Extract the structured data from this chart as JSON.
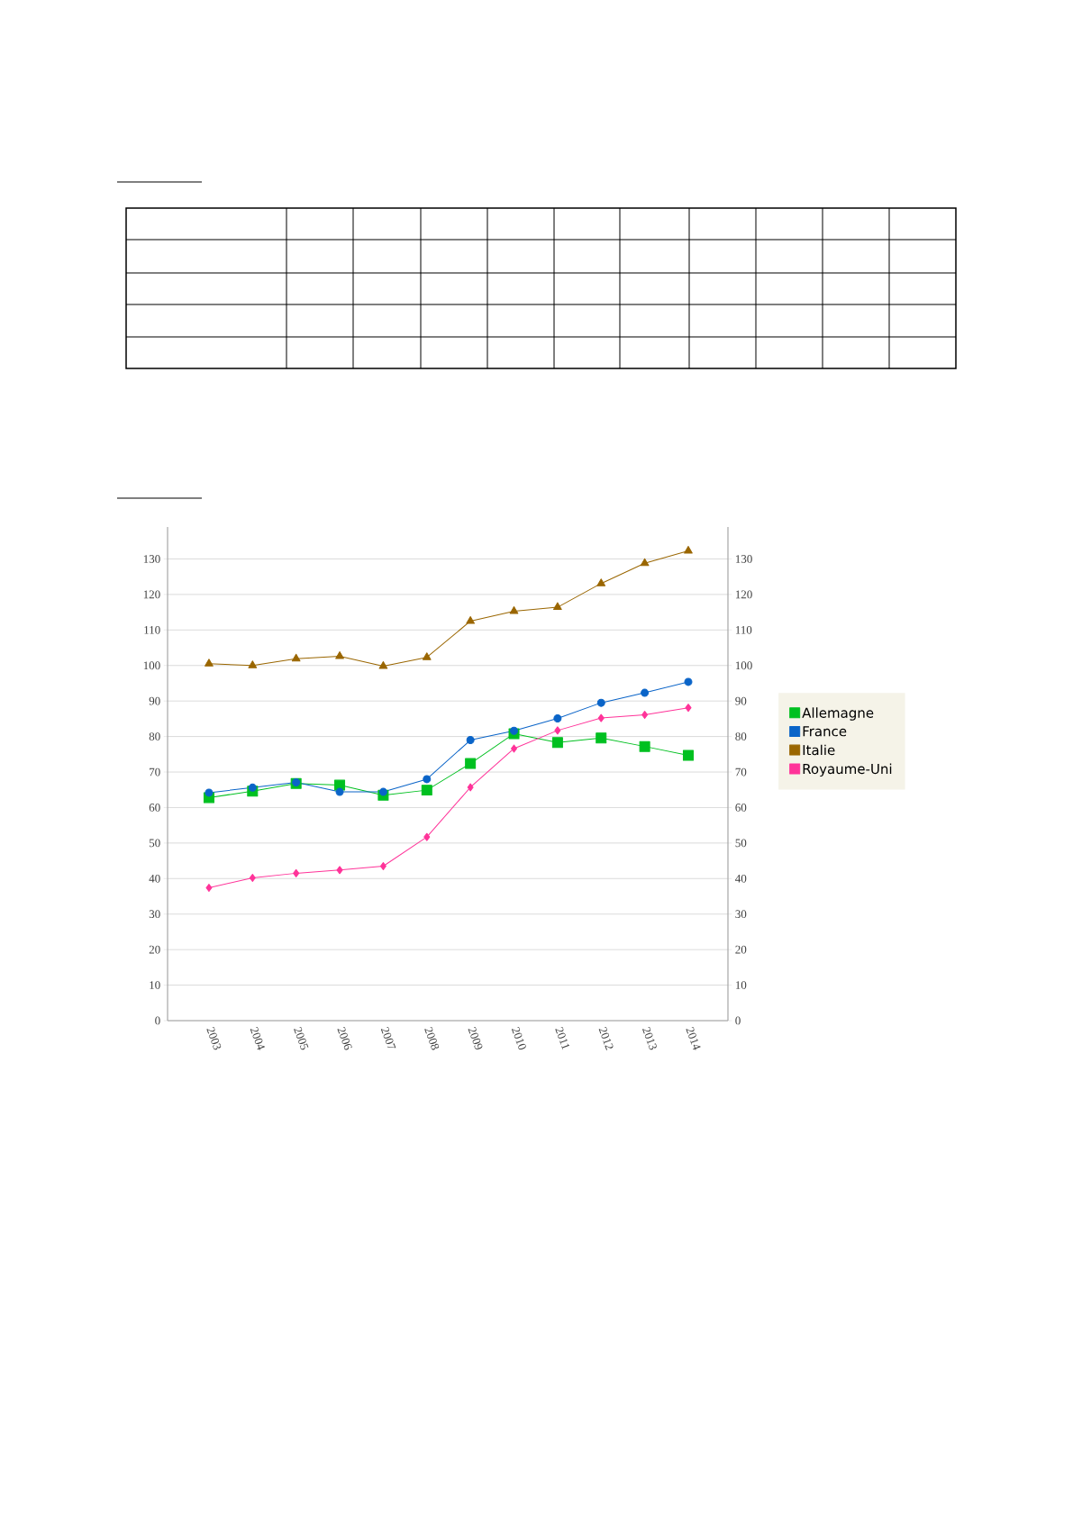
{
  "chart_data": {
    "type": "line",
    "categories": [
      "2003",
      "2004",
      "2005",
      "2006",
      "2007",
      "2008",
      "2009",
      "2010",
      "2011",
      "2012",
      "2013",
      "2014"
    ],
    "series": [
      {
        "name": "Allemagne",
        "color": "#00c020",
        "marker": "square",
        "values": [
          62.8,
          64.6,
          66.8,
          66.3,
          63.5,
          64.9,
          72.4,
          80.8,
          78.3,
          79.6,
          77.2,
          74.7
        ]
      },
      {
        "name": "France",
        "color": "#0a64c8",
        "marker": "circle",
        "values": [
          64.2,
          65.6,
          67.1,
          64.4,
          64.4,
          68.0,
          79.0,
          81.6,
          85.1,
          89.5,
          92.3,
          95.4
        ]
      },
      {
        "name": "Italie",
        "color": "#9a6600",
        "marker": "triangle",
        "values": [
          100.5,
          100.0,
          101.9,
          102.6,
          99.8,
          102.3,
          112.5,
          115.3,
          116.4,
          123.1,
          128.8,
          132.3
        ]
      },
      {
        "name": "Royaume-Uni",
        "color": "#ff3399",
        "marker": "diamond",
        "values": [
          37.4,
          40.2,
          41.5,
          42.4,
          43.5,
          51.7,
          65.7,
          76.6,
          81.7,
          85.2,
          86.1,
          88.1
        ]
      }
    ],
    "ylim": [
      0,
      139
    ],
    "yticks": [
      0,
      10,
      20,
      30,
      40,
      50,
      60,
      70,
      80,
      90,
      100,
      110,
      120,
      130
    ],
    "y2lim": [
      0,
      139
    ],
    "y2ticks": [
      0,
      10,
      20,
      30,
      40,
      50,
      60,
      70,
      80,
      90,
      100,
      110,
      120,
      130
    ],
    "grid": "y",
    "legend": "right"
  }
}
